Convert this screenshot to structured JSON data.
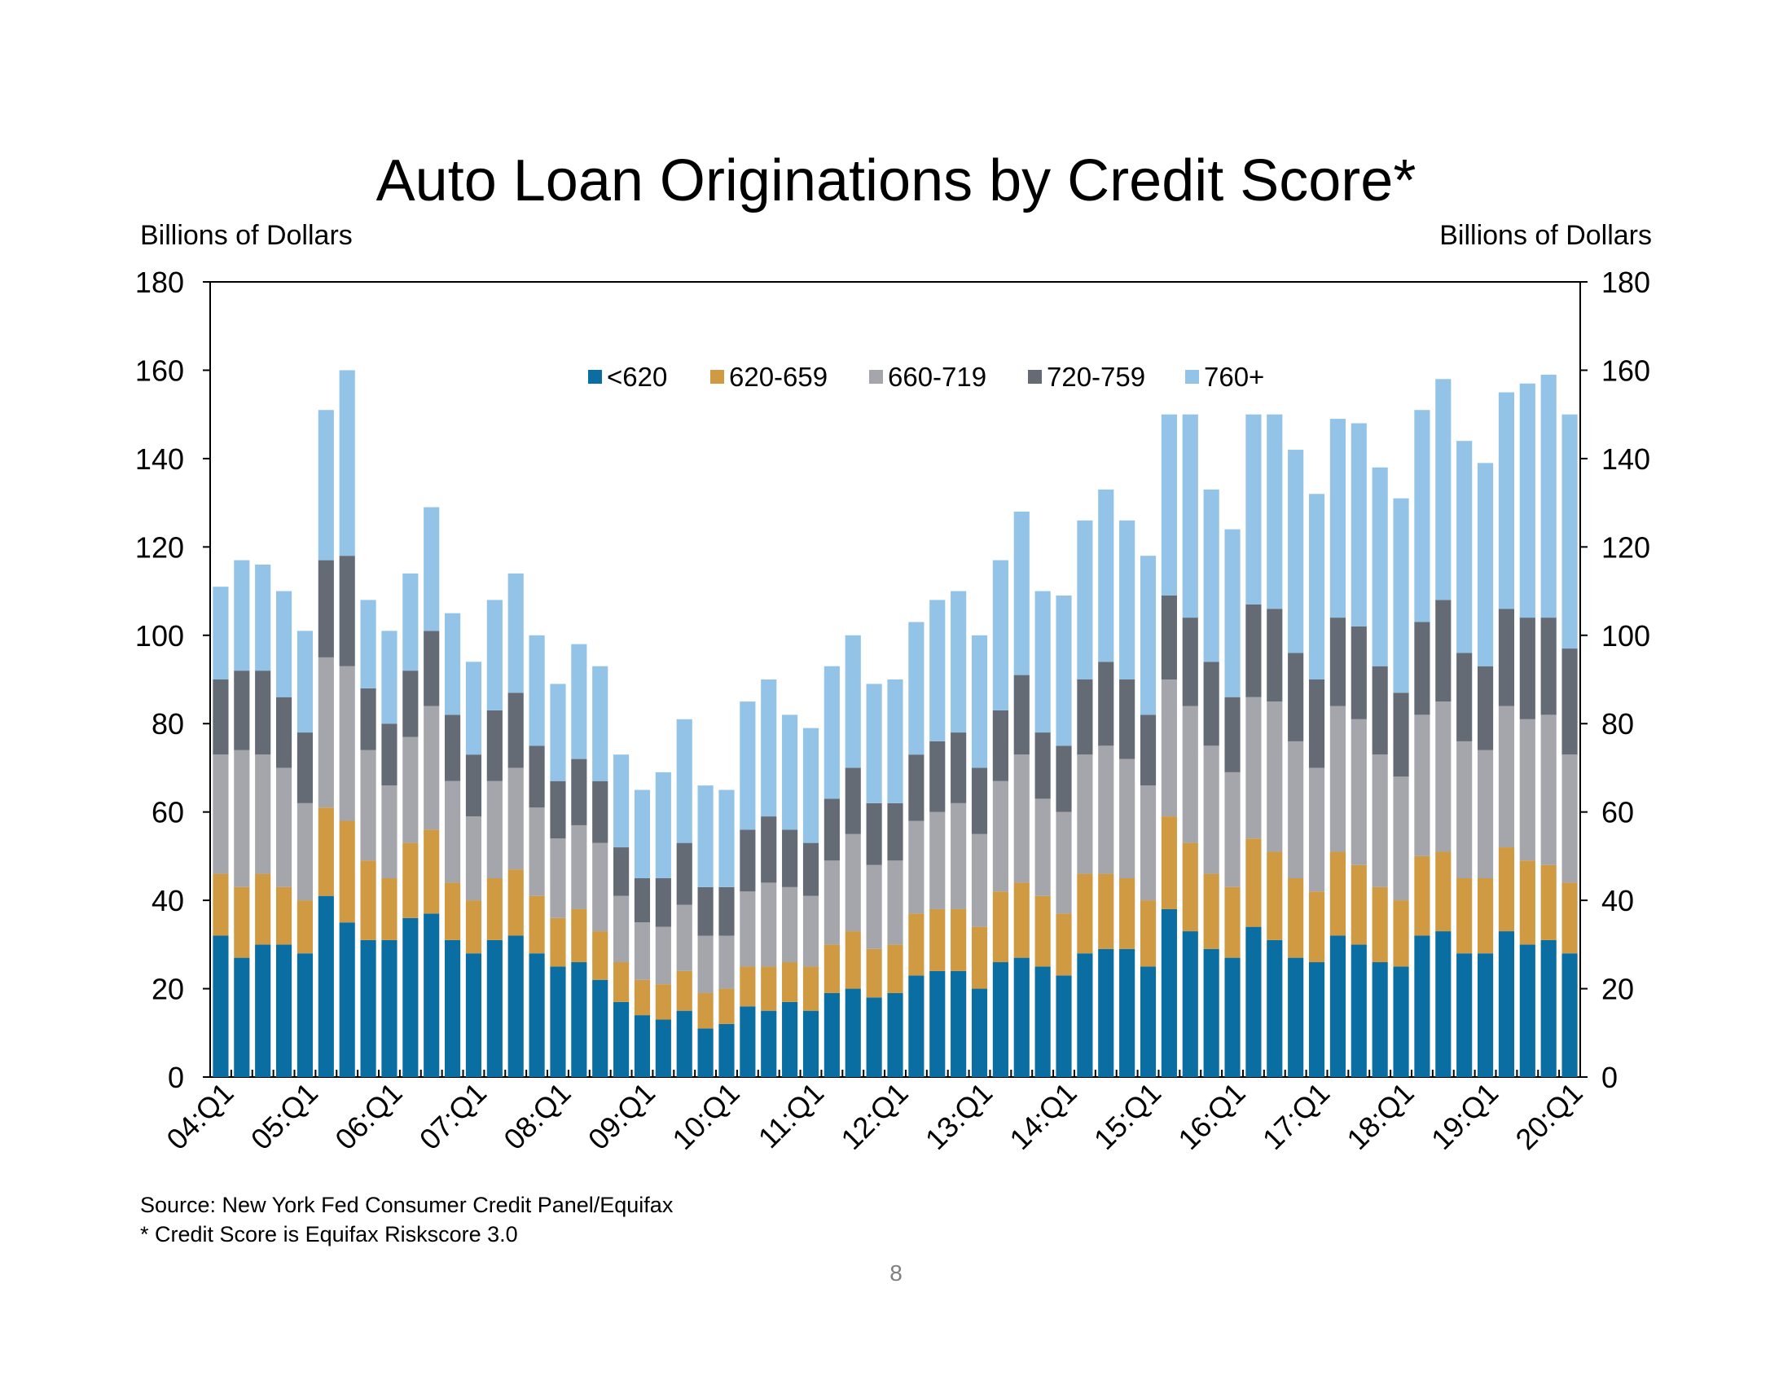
{
  "page_number": "8",
  "colors": {
    "below_620": "#0a6ea3",
    "s620_659": "#cf9a41",
    "s660_719": "#a5a6ab",
    "s720_759": "#646b75",
    "s760_plus": "#93c4e7"
  },
  "chart_data": {
    "type": "bar",
    "stacked": true,
    "title": "Auto Loan Originations by Credit Score*",
    "ylabel_left": "Billions of Dollars",
    "ylabel_right": "Billions of Dollars",
    "ylim": [
      0,
      180
    ],
    "yticks": [
      0,
      20,
      40,
      60,
      80,
      100,
      120,
      140,
      160,
      180
    ],
    "xtick_labels": [
      "04:Q1",
      "05:Q1",
      "06:Q1",
      "07:Q1",
      "08:Q1",
      "09:Q1",
      "10:Q1",
      "11:Q1",
      "12:Q1",
      "13:Q1",
      "14:Q1",
      "15:Q1",
      "16:Q1",
      "17:Q1",
      "18:Q1",
      "19:Q1",
      "20:Q1"
    ],
    "legend_position": "top-center",
    "source": "Source: New York Fed Consumer Credit Panel/Equifax",
    "footnote": "* Credit Score is Equifax Riskscore 3.0",
    "categories": [
      "04:Q1",
      "04:Q2",
      "04:Q3",
      "04:Q4",
      "05:Q1",
      "05:Q2",
      "05:Q3",
      "05:Q4",
      "06:Q1",
      "06:Q2",
      "06:Q3",
      "06:Q4",
      "07:Q1",
      "07:Q2",
      "07:Q3",
      "07:Q4",
      "08:Q1",
      "08:Q2",
      "08:Q3",
      "08:Q4",
      "09:Q1",
      "09:Q2",
      "09:Q3",
      "09:Q4",
      "10:Q1",
      "10:Q2",
      "10:Q3",
      "10:Q4",
      "11:Q1",
      "11:Q2",
      "11:Q3",
      "11:Q4",
      "12:Q1",
      "12:Q2",
      "12:Q3",
      "12:Q4",
      "13:Q1",
      "13:Q2",
      "13:Q3",
      "13:Q4",
      "14:Q1",
      "14:Q2",
      "14:Q3",
      "14:Q4",
      "15:Q1",
      "15:Q2",
      "15:Q3",
      "15:Q4",
      "16:Q1",
      "16:Q2",
      "16:Q3",
      "16:Q4",
      "17:Q1",
      "17:Q2",
      "17:Q3",
      "17:Q4",
      "18:Q1",
      "18:Q2",
      "18:Q3",
      "18:Q4",
      "19:Q1",
      "19:Q2",
      "19:Q3",
      "19:Q4",
      "20:Q1"
    ],
    "series": [
      {
        "name": "<620",
        "color_key": "below_620",
        "values": [
          32,
          27,
          30,
          30,
          28,
          41,
          35,
          31,
          31,
          36,
          37,
          31,
          28,
          31,
          32,
          28,
          25,
          26,
          22,
          17,
          14,
          13,
          15,
          11,
          12,
          16,
          15,
          17,
          15,
          19,
          20,
          18,
          19,
          23,
          24,
          24,
          20,
          26,
          27,
          25,
          23,
          28,
          29,
          29,
          25,
          38,
          33,
          29,
          27,
          34,
          31,
          27,
          26,
          32,
          30,
          26,
          25,
          32,
          33,
          28,
          28,
          33,
          30,
          31,
          28
        ]
      },
      {
        "name": "620-659",
        "color_key": "s620_659",
        "values": [
          14,
          16,
          16,
          13,
          12,
          20,
          23,
          18,
          14,
          17,
          19,
          13,
          12,
          14,
          15,
          13,
          11,
          12,
          11,
          9,
          8,
          8,
          9,
          8,
          8,
          9,
          10,
          9,
          10,
          11,
          13,
          11,
          11,
          14,
          14,
          14,
          14,
          16,
          17,
          16,
          14,
          18,
          17,
          16,
          15,
          21,
          20,
          17,
          16,
          20,
          20,
          18,
          16,
          19,
          18,
          17,
          15,
          18,
          18,
          17,
          17,
          19,
          19,
          17,
          16
        ]
      },
      {
        "name": "660-719",
        "color_key": "s660_719",
        "values": [
          27,
          31,
          27,
          27,
          22,
          34,
          35,
          25,
          21,
          24,
          28,
          23,
          19,
          22,
          23,
          20,
          18,
          19,
          20,
          15,
          13,
          13,
          15,
          13,
          12,
          17,
          19,
          17,
          16,
          19,
          22,
          19,
          19,
          21,
          22,
          24,
          21,
          25,
          29,
          22,
          23,
          27,
          29,
          27,
          26,
          31,
          31,
          29,
          26,
          32,
          34,
          31,
          28,
          33,
          33,
          30,
          28,
          32,
          34,
          31,
          29,
          32,
          32,
          34,
          29
        ]
      },
      {
        "name": "720-759",
        "color_key": "s720_759",
        "values": [
          17,
          18,
          19,
          16,
          16,
          22,
          25,
          14,
          14,
          15,
          17,
          15,
          14,
          16,
          17,
          14,
          13,
          15,
          14,
          11,
          10,
          11,
          14,
          11,
          11,
          14,
          15,
          13,
          12,
          14,
          15,
          14,
          13,
          15,
          16,
          16,
          15,
          16,
          18,
          15,
          15,
          17,
          19,
          18,
          16,
          19,
          20,
          19,
          17,
          21,
          21,
          20,
          20,
          20,
          21,
          20,
          19,
          21,
          23,
          20,
          19,
          22,
          23,
          22,
          24
        ]
      },
      {
        "name": "760+",
        "color_key": "s760_plus",
        "values": [
          21,
          25,
          24,
          24,
          23,
          34,
          42,
          20,
          21,
          22,
          28,
          23,
          21,
          25,
          27,
          25,
          22,
          26,
          26,
          21,
          20,
          24,
          28,
          23,
          22,
          29,
          31,
          26,
          26,
          30,
          30,
          27,
          28,
          30,
          32,
          32,
          30,
          34,
          37,
          32,
          34,
          36,
          39,
          36,
          36,
          41,
          46,
          39,
          38,
          43,
          44,
          46,
          42,
          45,
          46,
          45,
          44,
          48,
          50,
          48,
          46,
          49,
          53,
          55,
          53
        ]
      }
    ]
  }
}
